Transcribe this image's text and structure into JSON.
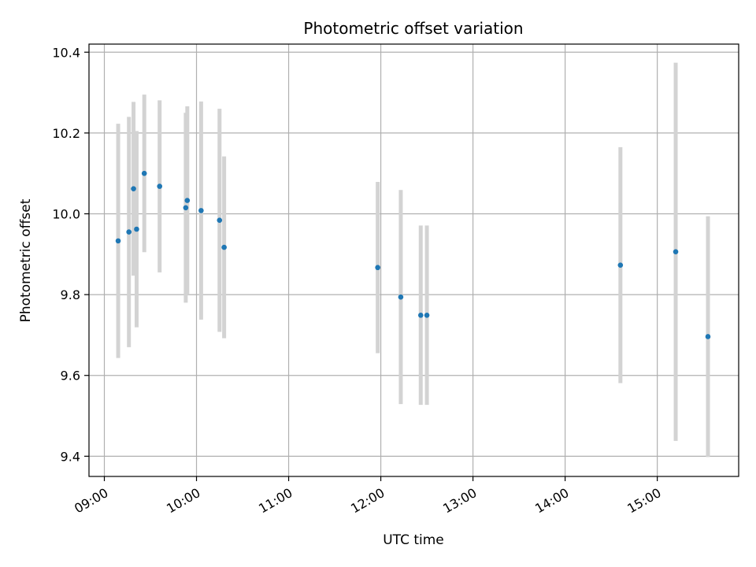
{
  "chart_data": {
    "type": "scatter",
    "title": "Photometric offset variation",
    "xlabel": "UTC time",
    "ylabel": "Photometric offset",
    "grid": true,
    "xlim": [
      "08:50",
      "15:53"
    ],
    "ylim": [
      9.35,
      10.42
    ],
    "x_ticks": [
      "09:00",
      "10:00",
      "11:00",
      "12:00",
      "13:00",
      "14:00",
      "15:00"
    ],
    "y_ticks": [
      9.4,
      9.6,
      9.8,
      10.0,
      10.2,
      10.4
    ],
    "y_tick_labels": [
      "9.4",
      "9.6",
      "9.8",
      "10.0",
      "10.2",
      "10.4"
    ],
    "colors": {
      "point": "#1f77b4",
      "errorbar": "#d3d3d3",
      "grid": "#b0b0b0"
    },
    "points": [
      {
        "x": "09:09",
        "y": 9.933,
        "err": 0.29
      },
      {
        "x": "09:16",
        "y": 9.955,
        "err": 0.285
      },
      {
        "x": "09:19",
        "y": 10.062,
        "err": 0.215
      },
      {
        "x": "09:21",
        "y": 9.962,
        "err": 0.243
      },
      {
        "x": "09:26",
        "y": 10.1,
        "err": 0.195
      },
      {
        "x": "09:36",
        "y": 10.068,
        "err": 0.213
      },
      {
        "x": "09:53",
        "y": 10.015,
        "err": 0.235
      },
      {
        "x": "09:54",
        "y": 10.033,
        "err": 0.233
      },
      {
        "x": "10:03",
        "y": 10.008,
        "err": 0.27
      },
      {
        "x": "10:15",
        "y": 9.984,
        "err": 0.276
      },
      {
        "x": "10:18",
        "y": 9.917,
        "err": 0.225
      },
      {
        "x": "11:58",
        "y": 9.867,
        "err": 0.212
      },
      {
        "x": "12:13",
        "y": 9.794,
        "err": 0.265
      },
      {
        "x": "12:26",
        "y": 9.749,
        "err": 0.222
      },
      {
        "x": "12:30",
        "y": 9.749,
        "err": 0.222
      },
      {
        "x": "14:36",
        "y": 9.873,
        "err": 0.292
      },
      {
        "x": "15:12",
        "y": 9.906,
        "err": 0.468
      },
      {
        "x": "15:33",
        "y": 9.696,
        "err": 0.298
      }
    ]
  }
}
